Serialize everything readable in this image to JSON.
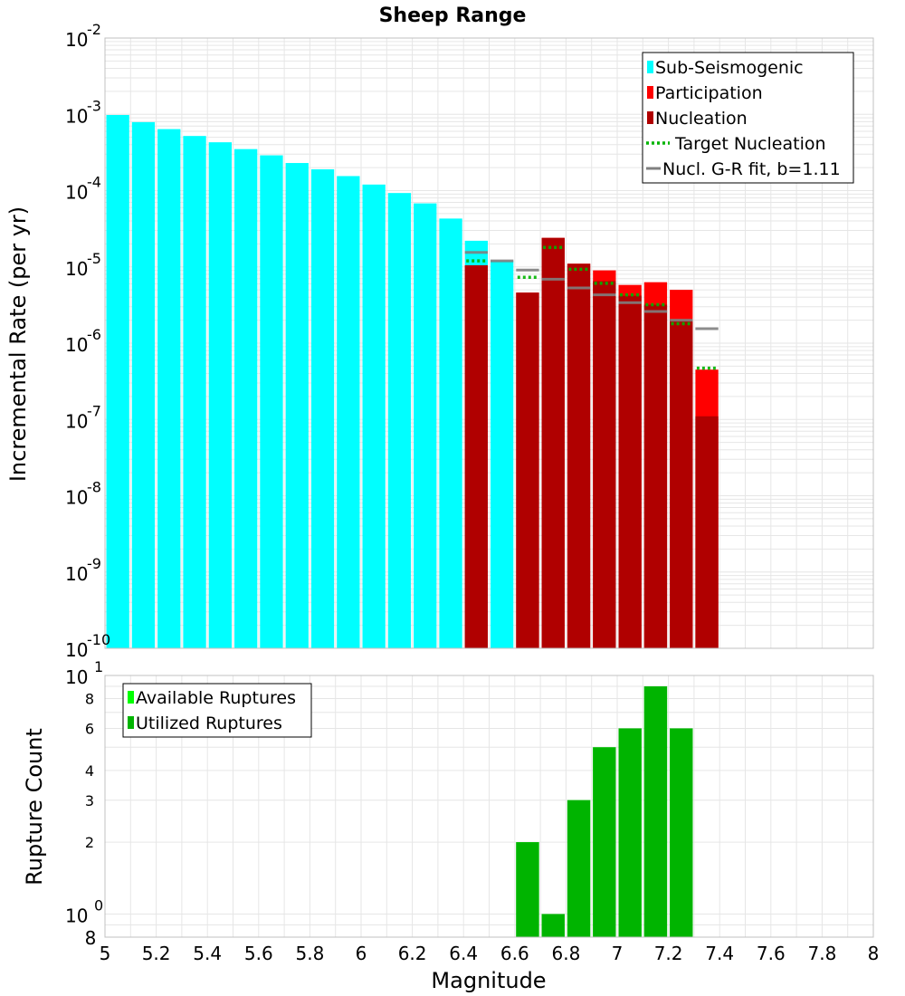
{
  "colors": {
    "sub_seismogenic": "#00ffff",
    "participation": "#ff0000",
    "nucleation": "#b00000",
    "target_nucleation": "#00b400",
    "gr_fit": "#808080",
    "available": "#00ff00",
    "utilized": "#00b400",
    "grid": "#e6e6e6",
    "frame": "#c0c0c0"
  },
  "chart_data": [
    {
      "type": "bar",
      "title": "Sheep Range",
      "xlabel": "",
      "ylabel": "Incremental Rate (per yr)",
      "xlim": [
        5,
        8
      ],
      "yscale": "log",
      "ylim": [
        1e-10,
        0.01
      ],
      "y_tick_labels": [
        {
          "base": "10",
          "exp": "-10",
          "value": 1e-10
        },
        {
          "base": "10",
          "exp": "-9",
          "value": 1e-09
        },
        {
          "base": "10",
          "exp": "-8",
          "value": 1e-08
        },
        {
          "base": "10",
          "exp": "-7",
          "value": 1e-07
        },
        {
          "base": "10",
          "exp": "-6",
          "value": 1e-06
        },
        {
          "base": "10",
          "exp": "-5",
          "value": 1e-05
        },
        {
          "base": "10",
          "exp": "-4",
          "value": 0.0001
        },
        {
          "base": "10",
          "exp": "-3",
          "value": 0.001
        },
        {
          "base": "10",
          "exp": "-2",
          "value": 0.01
        }
      ],
      "bin_width": 0.1,
      "series": [
        {
          "name": "Sub-Seismogenic",
          "color": "#00ffff",
          "x": [
            5.05,
            5.15,
            5.25,
            5.35,
            5.45,
            5.55,
            5.65,
            5.75,
            5.85,
            5.95,
            6.05,
            6.15,
            6.25,
            6.35,
            6.45,
            6.55
          ],
          "values": [
            0.00098,
            0.00079,
            0.00064,
            0.00052,
            0.00043,
            0.00035,
            0.00029,
            0.00023,
            0.00019,
            0.000155,
            0.00012,
            9.3e-05,
            6.8e-05,
            4.3e-05,
            2.2e-05,
            1.2e-05
          ]
        },
        {
          "name": "Participation",
          "color": "#ff0000",
          "x": [
            6.45,
            6.65,
            6.75,
            6.85,
            6.95,
            7.05,
            7.15,
            7.25,
            7.35
          ],
          "values": [
            1.05e-05,
            4.6e-06,
            2.4e-05,
            1.1e-05,
            9e-06,
            5.8e-06,
            6.3e-06,
            5e-06,
            4.5e-07
          ]
        },
        {
          "name": "Nucleation",
          "color": "#b00000",
          "x": [
            6.45,
            6.65,
            6.75,
            6.85,
            6.95,
            7.05,
            7.15,
            7.25,
            7.35
          ],
          "values": [
            1.05e-05,
            4.6e-06,
            2.4e-05,
            1.1e-05,
            6.5e-06,
            4.2e-06,
            3.2e-06,
            2e-06,
            1.1e-07
          ]
        },
        {
          "name": "Target Nucleation",
          "color": "#00b400",
          "style": "dotted",
          "x": [
            6.45,
            6.65,
            6.75,
            6.85,
            6.95,
            7.05,
            7.15,
            7.25,
            7.35
          ],
          "values": [
            1.2e-05,
            7.3e-06,
            1.8e-05,
            9.3e-06,
            6.1e-06,
            4.3e-06,
            3.2e-06,
            1.8e-06,
            4.7e-07
          ]
        },
        {
          "name": "Nucl. G-R fit, b=1.11",
          "color": "#808080",
          "style": "solid",
          "x": [
            6.45,
            6.55,
            6.65,
            6.75,
            6.85,
            6.95,
            7.05,
            7.15,
            7.25,
            7.35
          ],
          "values": [
            1.55e-05,
            1.2e-05,
            9.1e-06,
            6.9e-06,
            5.3e-06,
            4.3e-06,
            3.4e-06,
            2.6e-06,
            2e-06,
            1.55e-06
          ]
        }
      ],
      "legend": {
        "position": "top-right",
        "entries": [
          {
            "label": "Sub-Seismogenic",
            "kind": "box",
            "color": "#00ffff"
          },
          {
            "label": "Participation",
            "kind": "box",
            "color": "#ff0000"
          },
          {
            "label": "Nucleation",
            "kind": "box",
            "color": "#b00000"
          },
          {
            "label": "Target Nucleation",
            "kind": "dotted",
            "color": "#00b400"
          },
          {
            "label": "Nucl. G-R fit, b=1.11",
            "kind": "line",
            "color": "#808080"
          }
        ]
      }
    },
    {
      "type": "bar",
      "title": "",
      "xlabel": "Magnitude",
      "ylabel": "Rupture Count",
      "xlim": [
        5,
        8
      ],
      "x_tick_labels": [
        "5",
        "5.2",
        "5.4",
        "5.6",
        "5.8",
        "6",
        "6.2",
        "6.4",
        "6.6",
        "6.8",
        "7",
        "7.2",
        "7.4",
        "7.6",
        "7.8",
        "8"
      ],
      "x_tick_values": [
        5,
        5.2,
        5.4,
        5.6,
        5.8,
        6,
        6.2,
        6.4,
        6.6,
        6.8,
        7,
        7.2,
        7.4,
        7.6,
        7.8,
        8
      ],
      "yscale": "log",
      "ylim": [
        0.8,
        10
      ],
      "y_major_labels": [
        {
          "base": "10",
          "exp": "0",
          "value": 1
        },
        {
          "base": "10",
          "exp": "1",
          "value": 10
        }
      ],
      "y_minor_labels": [
        {
          "label": "8",
          "value": 0.8
        },
        {
          "label": "2",
          "value": 2
        },
        {
          "label": "3",
          "value": 3
        },
        {
          "label": "4",
          "value": 4
        },
        {
          "label": "6",
          "value": 6
        },
        {
          "label": "8",
          "value": 8
        }
      ],
      "bin_width": 0.1,
      "series": [
        {
          "name": "Available Ruptures",
          "color": "#00ff00",
          "x": [
            6.65,
            6.75,
            6.85,
            6.95,
            7.05,
            7.15,
            7.25
          ],
          "values": [
            2,
            1,
            3,
            5,
            6,
            9,
            6
          ]
        },
        {
          "name": "Utilized Ruptures",
          "color": "#00b400",
          "x": [
            6.65,
            6.75,
            6.85,
            6.95,
            7.05,
            7.15,
            7.25
          ],
          "values": [
            2,
            1,
            3,
            5,
            6,
            9,
            6
          ]
        }
      ],
      "legend": {
        "position": "top-left",
        "entries": [
          {
            "label": "Available Ruptures",
            "kind": "box",
            "color": "#00ff00"
          },
          {
            "label": "Utilized Ruptures",
            "kind": "box",
            "color": "#00b400"
          }
        ]
      }
    }
  ]
}
